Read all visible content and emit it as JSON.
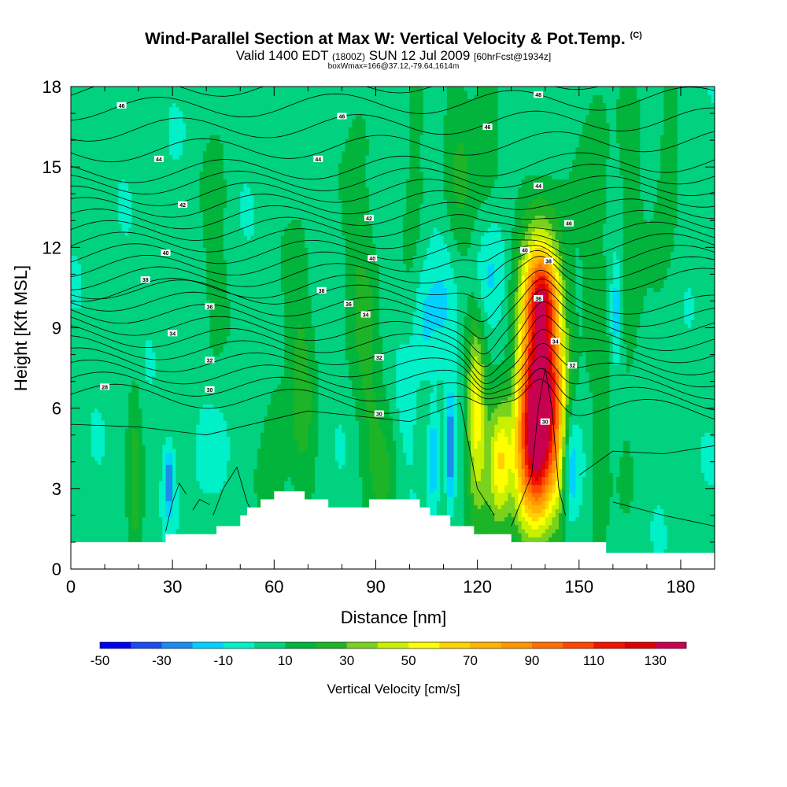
{
  "title": {
    "main": "Wind-Parallel Section at Max W: Vertical Velocity & Pot.Temp.",
    "copyright": "(C)",
    "valid_prefix": "Valid 1400 EDT",
    "utc": "(1800Z)",
    "date": "SUN 12 Jul 2009",
    "fcst": "[60hrFcst@1934z]",
    "boxinfo": "boxWmax=166@37.12,-79.64,1614m"
  },
  "chart_data": {
    "type": "heatmap",
    "xlabel": "Distance [nm]",
    "ylabel": "Height [Kft MSL]",
    "xlim": [
      0,
      190
    ],
    "ylim": [
      0,
      18
    ],
    "xticks": [
      0,
      30,
      60,
      90,
      120,
      150,
      180
    ],
    "yticks": [
      0,
      3,
      6,
      9,
      12,
      15,
      18
    ],
    "colorbar": {
      "label": "Vertical Velocity [cm/s]",
      "tick_labels": [
        -50,
        -30,
        -10,
        10,
        30,
        50,
        70,
        90,
        110,
        130
      ],
      "min": -50,
      "max": 140,
      "step": 10,
      "colors": [
        "#0000f5",
        "#1a4cf0",
        "#1a8cf0",
        "#00d2ff",
        "#00f0c8",
        "#00d280",
        "#00b43c",
        "#1eb428",
        "#78d21e",
        "#c8f000",
        "#ffff00",
        "#ffd200",
        "#ffb400",
        "#ff9600",
        "#ff6e00",
        "#ff4600",
        "#f01400",
        "#dc0000",
        "#c80050"
      ]
    },
    "terrain": [
      [
        0,
        1.0
      ],
      [
        28,
        1.0
      ],
      [
        28,
        1.3
      ],
      [
        43,
        1.3
      ],
      [
        43,
        1.6
      ],
      [
        50,
        1.6
      ],
      [
        50,
        2.0
      ],
      [
        52,
        2.0
      ],
      [
        52,
        2.3
      ],
      [
        56,
        2.3
      ],
      [
        56,
        2.6
      ],
      [
        60,
        2.6
      ],
      [
        60,
        2.9
      ],
      [
        69,
        2.9
      ],
      [
        69,
        2.6
      ],
      [
        76,
        2.6
      ],
      [
        76,
        2.3
      ],
      [
        88,
        2.3
      ],
      [
        88,
        2.6
      ],
      [
        103,
        2.6
      ],
      [
        103,
        2.3
      ],
      [
        106,
        2.3
      ],
      [
        106,
        2.0
      ],
      [
        112,
        2.0
      ],
      [
        112,
        1.6
      ],
      [
        119,
        1.6
      ],
      [
        119,
        1.3
      ],
      [
        130,
        1.3
      ],
      [
        130,
        1.0
      ],
      [
        158,
        1.0
      ],
      [
        158,
        0.6
      ],
      [
        190,
        0.6
      ]
    ],
    "theta_labels": [
      {
        "x": 15,
        "y": 17.3,
        "text": "46"
      },
      {
        "x": 80,
        "y": 16.9,
        "text": "46"
      },
      {
        "x": 123,
        "y": 16.5,
        "text": "46"
      },
      {
        "x": 138,
        "y": 17.7,
        "text": "48"
      },
      {
        "x": 26,
        "y": 15.3,
        "text": "44"
      },
      {
        "x": 73,
        "y": 15.3,
        "text": "44"
      },
      {
        "x": 138,
        "y": 14.3,
        "text": "44"
      },
      {
        "x": 33,
        "y": 13.6,
        "text": "42"
      },
      {
        "x": 88,
        "y": 13.1,
        "text": "42"
      },
      {
        "x": 147,
        "y": 12.9,
        "text": "46"
      },
      {
        "x": 28,
        "y": 11.8,
        "text": "40"
      },
      {
        "x": 89,
        "y": 11.6,
        "text": "40"
      },
      {
        "x": 134,
        "y": 11.9,
        "text": "40"
      },
      {
        "x": 141,
        "y": 11.5,
        "text": "38"
      },
      {
        "x": 22,
        "y": 10.8,
        "text": "38"
      },
      {
        "x": 74,
        "y": 10.4,
        "text": "38"
      },
      {
        "x": 138,
        "y": 10.1,
        "text": "36"
      },
      {
        "x": 41,
        "y": 9.8,
        "text": "36"
      },
      {
        "x": 82,
        "y": 9.9,
        "text": "36"
      },
      {
        "x": 87,
        "y": 9.5,
        "text": "34"
      },
      {
        "x": 30,
        "y": 8.8,
        "text": "34"
      },
      {
        "x": 143,
        "y": 8.5,
        "text": "34"
      },
      {
        "x": 41,
        "y": 7.8,
        "text": "32"
      },
      {
        "x": 91,
        "y": 7.9,
        "text": "32"
      },
      {
        "x": 148,
        "y": 7.6,
        "text": "32"
      },
      {
        "x": 10,
        "y": 6.8,
        "text": "28"
      },
      {
        "x": 41,
        "y": 6.7,
        "text": "30"
      },
      {
        "x": 91,
        "y": 5.8,
        "text": "30"
      },
      {
        "x": 140,
        "y": 5.5,
        "text": "30"
      }
    ],
    "updrafts": [
      {
        "x": 139,
        "y": 7.5,
        "sx": 4.5,
        "sy": 3.2,
        "amp": 130
      },
      {
        "x": 137,
        "y": 4.2,
        "sx": 3.5,
        "sy": 2.0,
        "amp": 70
      },
      {
        "x": 139,
        "y": 10.3,
        "sx": 3.0,
        "sy": 0.9,
        "amp": 40
      },
      {
        "x": 119.5,
        "y": 5.8,
        "sx": 2.0,
        "sy": 2.5,
        "amp": 45
      },
      {
        "x": 127,
        "y": 4.2,
        "sx": 2.3,
        "sy": 1.6,
        "amp": 42
      },
      {
        "x": 123,
        "y": 3.2,
        "sx": 4.0,
        "sy": 2.5,
        "amp": 15
      },
      {
        "x": 133,
        "y": 4.5,
        "sx": 2.0,
        "sy": 3.0,
        "amp": 15
      },
      {
        "x": 144,
        "y": 4.0,
        "sx": 1.5,
        "sy": 2.0,
        "amp": 15
      },
      {
        "x": 68,
        "y": 7.0,
        "sx": 3.0,
        "sy": 4.0,
        "amp": 18
      },
      {
        "x": 88,
        "y": 8.5,
        "sx": 2.5,
        "sy": 4.0,
        "amp": 16
      },
      {
        "x": 60,
        "y": 4.0,
        "sx": 2.5,
        "sy": 3.0,
        "amp": 14
      },
      {
        "x": 93,
        "y": 4.0,
        "sx": 3.0,
        "sy": 2.5,
        "amp": 14
      },
      {
        "x": 19,
        "y": 3.3,
        "sx": 1.5,
        "sy": 3.0,
        "amp": 18
      },
      {
        "x": 115,
        "y": 14.0,
        "sx": 3.5,
        "sy": 4.0,
        "amp": 15
      },
      {
        "x": 123,
        "y": 15.5,
        "sx": 3.0,
        "sy": 3.0,
        "amp": 14
      },
      {
        "x": 102,
        "y": 16.0,
        "sx": 2.5,
        "sy": 3.0,
        "amp": 13
      },
      {
        "x": 155,
        "y": 14.5,
        "sx": 3.0,
        "sy": 4.0,
        "amp": 14
      },
      {
        "x": 165,
        "y": 11.0,
        "sx": 2.5,
        "sy": 4.5,
        "amp": 14
      },
      {
        "x": 176,
        "y": 15.0,
        "sx": 3.0,
        "sy": 3.0,
        "amp": 13
      },
      {
        "x": 156,
        "y": 3.5,
        "sx": 2.0,
        "sy": 3.0,
        "amp": 14
      },
      {
        "x": 42,
        "y": 12.5,
        "sx": 2.5,
        "sy": 4.0,
        "amp": 13
      },
      {
        "x": 84,
        "y": 13.0,
        "sx": 2.5,
        "sy": 4.0,
        "amp": 12
      }
    ],
    "downdrafts": [
      {
        "x": 123,
        "y": 10.8,
        "sx": 3.5,
        "sy": 1.6,
        "amp": -20
      },
      {
        "x": 111,
        "y": 10.0,
        "sx": 4.5,
        "sy": 2.2,
        "amp": -14
      },
      {
        "x": 112,
        "y": 4.5,
        "sx": 0.9,
        "sy": 1.5,
        "amp": -35
      },
      {
        "x": 107,
        "y": 4.2,
        "sx": 1.2,
        "sy": 1.3,
        "amp": -25
      },
      {
        "x": 147.5,
        "y": 3.8,
        "sx": 1.8,
        "sy": 1.5,
        "amp": -28
      },
      {
        "x": 161,
        "y": 9.5,
        "sx": 1.2,
        "sy": 1.3,
        "amp": -25
      },
      {
        "x": 29,
        "y": 3.3,
        "sx": 1.0,
        "sy": 0.9,
        "amp": -30
      },
      {
        "x": 104,
        "y": 9.0,
        "sx": 2.0,
        "sy": 1.5,
        "amp": -12
      },
      {
        "x": 99,
        "y": 6.0,
        "sx": 2.5,
        "sy": 1.5,
        "amp": -10
      },
      {
        "x": 40,
        "y": 4.5,
        "sx": 3.0,
        "sy": 1.5,
        "amp": -10
      },
      {
        "x": 40,
        "y": 17.0,
        "sx": 3.0,
        "sy": 1.2,
        "amp": -8
      },
      {
        "x": 128,
        "y": 17.0,
        "sx": 3.0,
        "sy": 1.2,
        "amp": -8
      }
    ]
  }
}
